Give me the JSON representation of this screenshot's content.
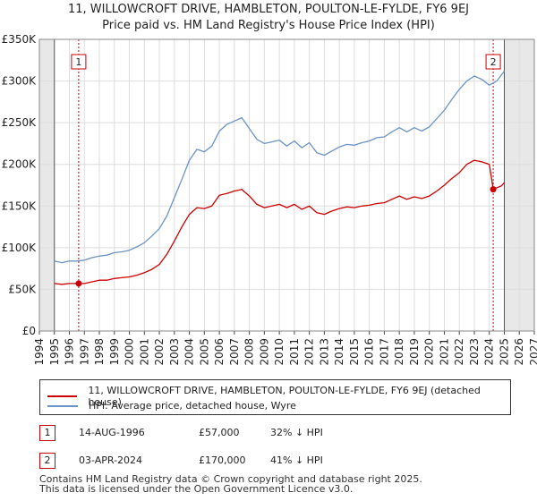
{
  "title_line1": "11, WILLOWCROFT DRIVE, HAMBLETON, POULTON-LE-FYLDE, FY6 9EJ",
  "title_line2": "Price paid vs. HM Land Registry's House Price Index (HPI)",
  "colors": {
    "price_line": "#cc0000",
    "hpi_line": "#6b93c5",
    "future_shade": "#e8e8e8",
    "grid": "#dddddd",
    "marker_line": "#cc0000"
  },
  "chart_data": {
    "type": "line",
    "x_range": [
      1994,
      2027
    ],
    "ylim": [
      0,
      350000
    ],
    "y_ticks": [
      {
        "value": 0,
        "label": "£0"
      },
      {
        "value": 50000,
        "label": "£50K"
      },
      {
        "value": 100000,
        "label": "£100K"
      },
      {
        "value": 150000,
        "label": "£150K"
      },
      {
        "value": 200000,
        "label": "£200K"
      },
      {
        "value": 250000,
        "label": "£250K"
      },
      {
        "value": 300000,
        "label": "£300K"
      },
      {
        "value": 350000,
        "label": "£350K"
      }
    ],
    "x_ticks": [
      "1994",
      "1995",
      "1996",
      "1997",
      "1998",
      "1999",
      "2000",
      "2001",
      "2002",
      "2003",
      "2004",
      "2005",
      "2006",
      "2007",
      "2008",
      "2009",
      "2010",
      "2011",
      "2012",
      "2013",
      "2014",
      "2015",
      "2016",
      "2017",
      "2018",
      "2019",
      "2020",
      "2021",
      "2022",
      "2023",
      "2024",
      "2025",
      "2026",
      "2027"
    ],
    "shaded_ranges": [
      [
        1994,
        1995.0
      ],
      [
        2025.0,
        2027
      ]
    ],
    "series": [
      {
        "name": "11, WILLOWCROFT DRIVE, HAMBLETON, POULTON-LE-FYLDE, FY6 9EJ (detached house)",
        "x": [
          1995.0,
          1995.5,
          1996.0,
          1996.62,
          1997.0,
          1997.5,
          1998.0,
          1998.5,
          1999.0,
          1999.5,
          2000.0,
          2000.5,
          2001.0,
          2001.5,
          2002.0,
          2002.5,
          2003.0,
          2003.5,
          2004.0,
          2004.5,
          2005.0,
          2005.5,
          2006.0,
          2006.5,
          2007.0,
          2007.5,
          2008.0,
          2008.5,
          2009.0,
          2009.5,
          2010.0,
          2010.5,
          2011.0,
          2011.5,
          2012.0,
          2012.5,
          2013.0,
          2013.5,
          2014.0,
          2014.5,
          2015.0,
          2015.5,
          2016.0,
          2016.5,
          2017.0,
          2017.5,
          2018.0,
          2018.5,
          2019.0,
          2019.5,
          2020.0,
          2020.5,
          2021.0,
          2021.5,
          2022.0,
          2022.5,
          2023.0,
          2023.5,
          2024.0,
          2024.26,
          2024.5,
          2024.8,
          2025.0
        ],
        "y": [
          57000,
          56000,
          57000,
          57000,
          57000,
          59000,
          61000,
          61000,
          63000,
          64000,
          65000,
          67000,
          70000,
          74000,
          80000,
          92000,
          108000,
          125000,
          140000,
          148000,
          147000,
          150000,
          163000,
          165000,
          168000,
          170000,
          162000,
          152000,
          148000,
          150000,
          152000,
          148000,
          152000,
          146000,
          150000,
          142000,
          140000,
          144000,
          147000,
          149000,
          148000,
          150000,
          151000,
          153000,
          154000,
          158000,
          162000,
          158000,
          161000,
          159000,
          162000,
          168000,
          175000,
          183000,
          190000,
          200000,
          205000,
          203000,
          200000,
          170000,
          172000,
          174000,
          178000
        ]
      },
      {
        "name": "HPI: Average price, detached house, Wyre",
        "x": [
          1995.0,
          1995.5,
          1996.0,
          1996.5,
          1997.0,
          1997.5,
          1998.0,
          1998.5,
          1999.0,
          1999.5,
          2000.0,
          2000.5,
          2001.0,
          2001.5,
          2002.0,
          2002.5,
          2003.0,
          2003.5,
          2004.0,
          2004.5,
          2005.0,
          2005.5,
          2006.0,
          2006.5,
          2007.0,
          2007.5,
          2008.0,
          2008.5,
          2009.0,
          2009.5,
          2010.0,
          2010.5,
          2011.0,
          2011.5,
          2012.0,
          2012.5,
          2013.0,
          2013.5,
          2014.0,
          2014.5,
          2015.0,
          2015.5,
          2016.0,
          2016.5,
          2017.0,
          2017.5,
          2018.0,
          2018.5,
          2019.0,
          2019.5,
          2020.0,
          2020.5,
          2021.0,
          2021.5,
          2022.0,
          2022.5,
          2023.0,
          2023.5,
          2024.0,
          2024.5,
          2025.0
        ],
        "y": [
          84000,
          82000,
          84000,
          84000,
          85000,
          88000,
          90000,
          91000,
          94000,
          95000,
          97000,
          101000,
          106000,
          114000,
          123000,
          138000,
          160000,
          182000,
          205000,
          218000,
          215000,
          222000,
          240000,
          248000,
          252000,
          256000,
          243000,
          230000,
          225000,
          227000,
          229000,
          222000,
          228000,
          220000,
          226000,
          214000,
          211000,
          216000,
          221000,
          224000,
          223000,
          226000,
          228000,
          232000,
          233000,
          239000,
          244000,
          239000,
          244000,
          240000,
          245000,
          255000,
          265000,
          278000,
          290000,
          300000,
          306000,
          302000,
          295000,
          300000,
          312000
        ]
      }
    ],
    "sales": [
      {
        "label": "1",
        "x": 1996.62,
        "price": 57000
      },
      {
        "label": "2",
        "x": 2024.26,
        "price": 170000
      }
    ]
  },
  "legend": {
    "price_label": "11, WILLOWCROFT DRIVE, HAMBLETON, POULTON-LE-FYLDE, FY6 9EJ (detached house)",
    "hpi_label": "HPI: Average price, detached house, Wyre"
  },
  "transactions": [
    {
      "label": "1",
      "date": "14-AUG-1996",
      "price": "£57,000",
      "hpi": "32% ↓ HPI"
    },
    {
      "label": "2",
      "date": "03-APR-2024",
      "price": "£170,000",
      "hpi": "41% ↓ HPI"
    }
  ],
  "footer_line1": "Contains HM Land Registry data © Crown copyright and database right 2025.",
  "footer_line2": "This data is licensed under the Open Government Licence v3.0."
}
